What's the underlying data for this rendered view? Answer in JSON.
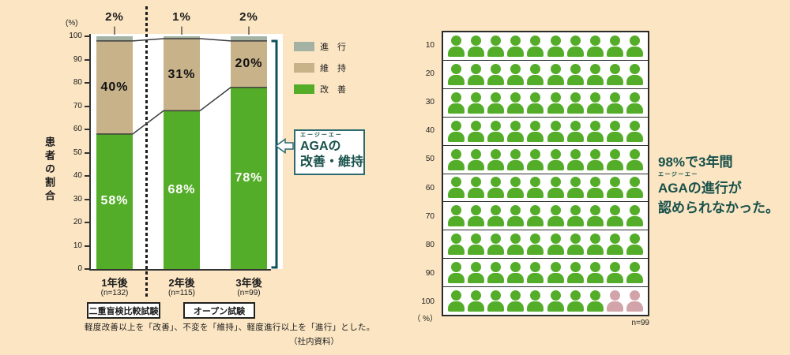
{
  "colors": {
    "page_bg": "#FBE5C3",
    "improve": "#54AD29",
    "maintain": "#C8B289",
    "progress": "#A4B2A3",
    "pink": "#D2A4AA",
    "bracket_teal": "#0F5059",
    "teal_text": "#17504A"
  },
  "left_chart": {
    "y_axis_unit": "(%)",
    "y_axis_label": "患者の割合",
    "y_ticks": [
      100,
      90,
      80,
      70,
      60,
      50,
      40,
      30,
      20,
      10,
      0
    ],
    "legend": [
      {
        "label": "進　行",
        "color": "#A4B2A3"
      },
      {
        "label": "維　持",
        "color": "#C8B289"
      },
      {
        "label": "改　善",
        "color": "#54AD29"
      }
    ],
    "bars": [
      {
        "x_label": "1年後",
        "n_label": "(n=132)",
        "improve_label": "58%",
        "maintain_label": "40%",
        "progress_label": "2%"
      },
      {
        "x_label": "2年後",
        "n_label": "(n=115)",
        "improve_label": "68%",
        "maintain_label": "31%",
        "progress_label": "1%"
      },
      {
        "x_label": "3年後",
        "n_label": "(n=99)",
        "improve_label": "78%",
        "maintain_label": "20%",
        "progress_label": "2%"
      }
    ],
    "trial_boxes": [
      "二重盲検比較試験",
      "オープン試験"
    ],
    "callout": {
      "furigana": "エージーエー",
      "line1": "AGAの",
      "line2": "改善・維持"
    },
    "footnote": "軽度改善以上を「改善」、不変を「維持」、軽度進行以上を「進行」とした。",
    "source": "（社内資料）"
  },
  "right_chart": {
    "row_labels": [
      "10",
      "20",
      "30",
      "40",
      "50",
      "60",
      "70",
      "80",
      "90",
      "100"
    ],
    "rows": [
      {
        "green": 10,
        "pink": 0
      },
      {
        "green": 10,
        "pink": 0
      },
      {
        "green": 10,
        "pink": 0
      },
      {
        "green": 10,
        "pink": 0
      },
      {
        "green": 10,
        "pink": 0
      },
      {
        "green": 10,
        "pink": 0
      },
      {
        "green": 10,
        "pink": 0
      },
      {
        "green": 10,
        "pink": 0
      },
      {
        "green": 10,
        "pink": 0
      },
      {
        "green": 8,
        "pink": 2
      }
    ],
    "unit_label": "（ %）",
    "n_label": "n=99",
    "annotation": {
      "line1": "98%で3年間",
      "furigana": "エージーエー",
      "line2": "AGAの進行が",
      "line3": "認められなかった。"
    }
  },
  "chart_data": [
    {
      "type": "bar",
      "subtype": "stacked-percentage",
      "categories": [
        "1年後",
        "2年後",
        "3年後"
      ],
      "n_per_category": [
        132,
        115,
        99
      ],
      "series": [
        {
          "name": "改善",
          "values": [
            58,
            68,
            78
          ],
          "color": "#54AD29"
        },
        {
          "name": "維持",
          "values": [
            40,
            31,
            20
          ],
          "color": "#C8B289"
        },
        {
          "name": "進行",
          "values": [
            2,
            1,
            2
          ],
          "color": "#A4B2A3"
        }
      ],
      "ylabel": "患者の割合",
      "y_unit": "%",
      "ylim": [
        0,
        100
      ],
      "grid": false,
      "legend_position": "right",
      "group_labels": [
        {
          "label": "二重盲検比較試験",
          "covers": [
            "1年後"
          ]
        },
        {
          "label": "オープン試験",
          "covers": [
            "2年後",
            "3年後"
          ]
        }
      ],
      "bracket_annotation": "AGAの改善・維持",
      "footnote": "軽度改善以上を「改善」、不変を「維持」、軽度進行以上を「進行」とした。",
      "source": "（社内資料）"
    },
    {
      "type": "pictogram",
      "total_icons": 100,
      "icons_per_row": 10,
      "green_icons": 98,
      "pink_icons": 2,
      "row_labels": [
        "10",
        "20",
        "30",
        "40",
        "50",
        "60",
        "70",
        "80",
        "90",
        "100"
      ],
      "unit": "%",
      "n": 99,
      "annotation": "98%で3年間AGAの進行が認められなかった。"
    }
  ]
}
